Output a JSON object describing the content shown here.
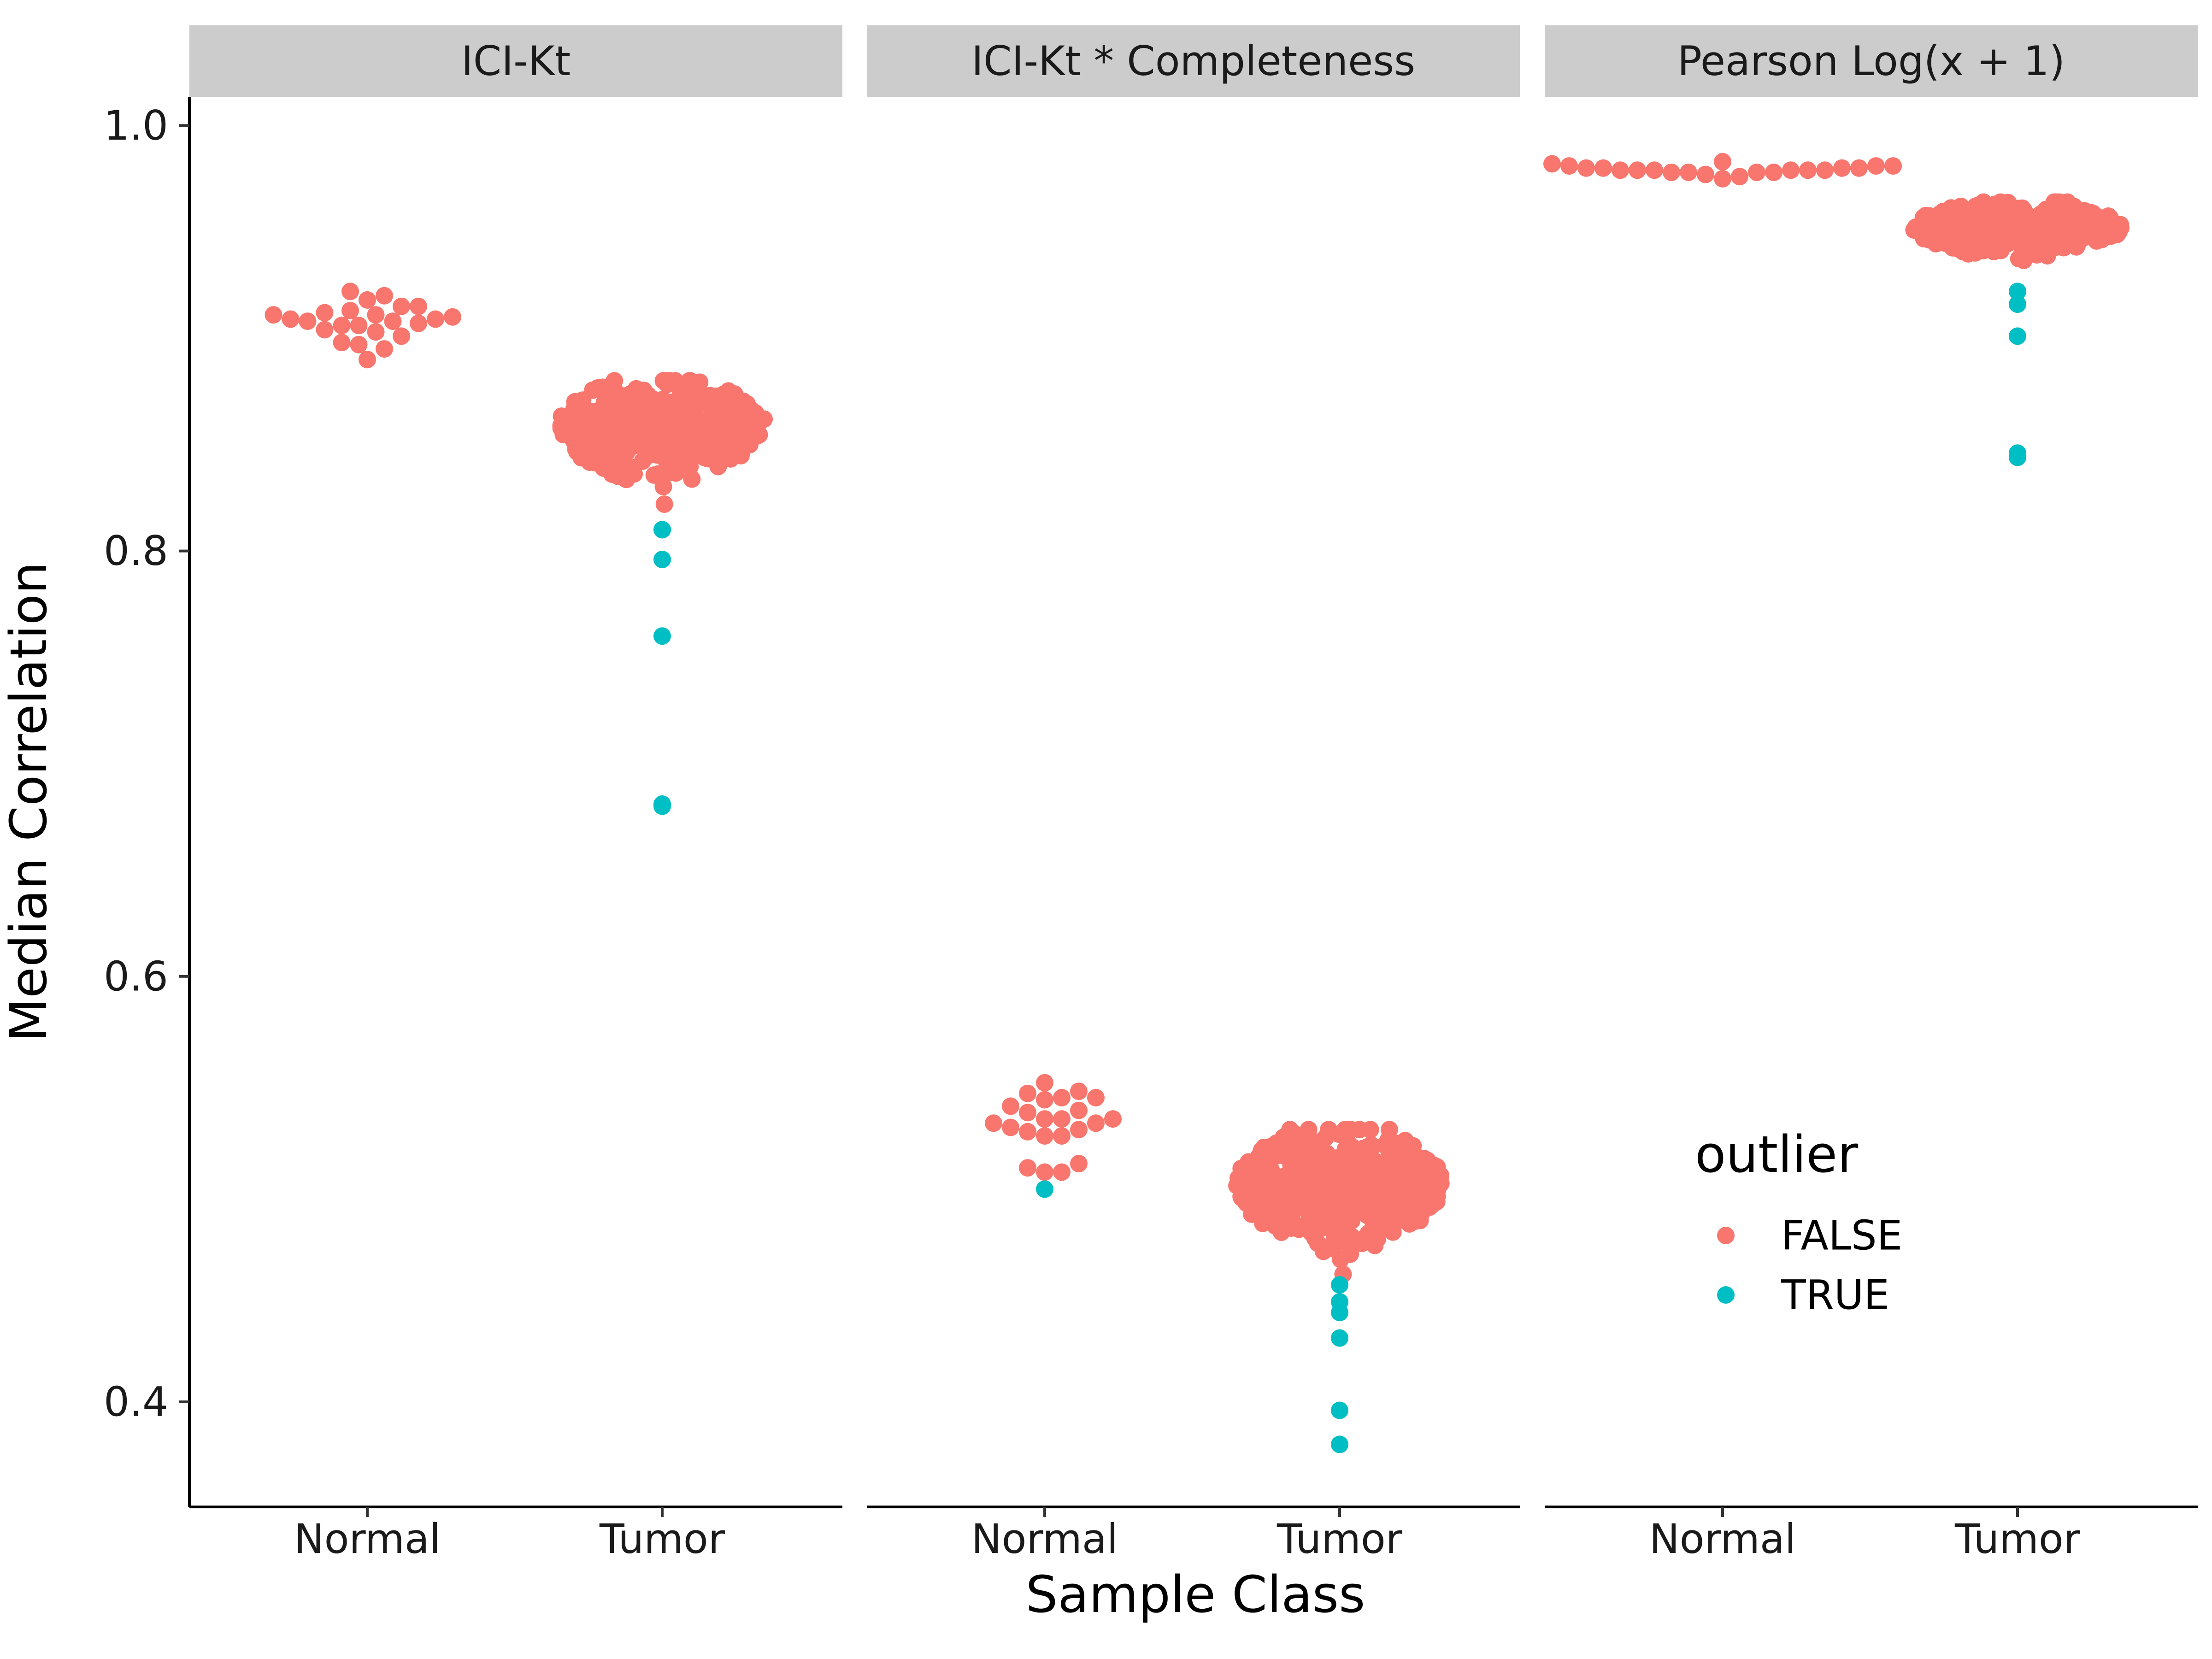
{
  "chart_data": {
    "type": "scatter",
    "subtype": "beeswarm, faceted",
    "xlabel": "Sample Class",
    "ylabel": "Median Correlation",
    "ylim": [
      0.35,
      1.0133
    ],
    "yticks": [
      0.4,
      0.6,
      0.8,
      1.0
    ],
    "ytick_labels": [
      "0.4",
      "0.6",
      "0.8",
      "1.0"
    ],
    "categories": [
      "Normal",
      "Tumor"
    ],
    "grid": false,
    "colors": {
      "FALSE": "#F8766D",
      "TRUE": "#00BFC4"
    },
    "legend": {
      "title": "outlier",
      "position": "inside-bottom-right",
      "entries": [
        {
          "key": "FALSE",
          "label": "FALSE"
        },
        {
          "key": "TRUE",
          "label": "TRUE"
        }
      ]
    },
    "facets": [
      {
        "label": "ICI-Kt",
        "groups": [
          {
            "category": "Normal",
            "false_values": [
              0.909,
              0.911,
              0.908,
              0.913,
              0.912,
              0.91,
              0.918,
              0.901,
              0.897,
              0.911,
              0.89,
              0.915,
              0.908,
              0.922,
              0.895,
              0.92,
              0.904,
              0.898,
              0.906,
              0.903,
              0.915,
              0.906,
              0.909,
              0.907
            ],
            "true_values": []
          },
          {
            "category": "Tumor",
            "false_range": [
              0.822,
              0.88
            ],
            "false_count": 420,
            "true_values": [
              0.81,
              0.81,
              0.796,
              0.76,
              0.681,
              0.68
            ]
          }
        ]
      },
      {
        "label": "ICI-Kt * Completeness",
        "groups": [
          {
            "category": "Normal",
            "false_values": [
              0.533,
              0.531,
              0.542,
              0.525,
              0.543,
              0.529,
              0.543,
              0.537,
              0.528,
              0.55,
              0.546,
              0.51,
              0.508,
              0.512,
              0.531,
              0.527,
              0.545,
              0.508,
              0.533,
              0.536,
              0.539,
              0.525,
              0.533
            ],
            "true_values": [
              0.5
            ]
          },
          {
            "category": "Tumor",
            "false_range": [
              0.46,
              0.528
            ],
            "false_count": 500,
            "true_values": [
              0.455,
              0.447,
              0.442,
              0.43,
              0.396,
              0.38
            ]
          }
        ]
      },
      {
        "label": "Pearson Log(x + 1)",
        "groups": [
          {
            "category": "Normal",
            "false_values": [
              0.979,
              0.979,
              0.979,
              0.98,
              0.98,
              0.978,
              0.98,
              0.981,
              0.982,
              0.977,
              0.976,
              0.981,
              0.979,
              0.983,
              0.975,
              0.978,
              0.981,
              0.98,
              0.979,
              0.978,
              0.979,
              0.978
            ],
            "true_values": []
          },
          {
            "category": "Tumor",
            "false_range": [
              0.932,
              0.964
            ],
            "false_count": 400,
            "true_values": [
              0.922,
              0.916,
              0.901,
              0.846,
              0.844
            ]
          }
        ]
      }
    ]
  }
}
